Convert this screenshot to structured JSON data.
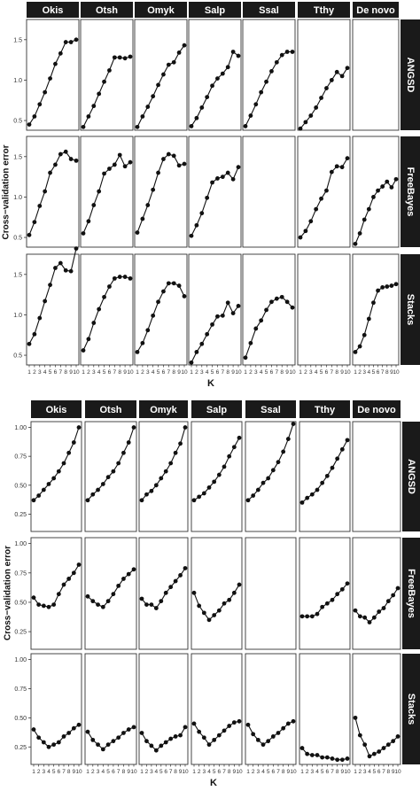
{
  "chart_data": [
    {
      "type": "line",
      "layout": "facet-grid",
      "title": "",
      "xlabel": "K",
      "ylabel": "Cross−validation error",
      "x": [
        1,
        2,
        3,
        4,
        5,
        6,
        7,
        8,
        9,
        10
      ],
      "x_tick_labels": [
        "1",
        "2",
        "3",
        "4",
        "5",
        "6",
        "7",
        "8",
        "9",
        "10"
      ],
      "ylim": [
        0.38,
        1.75
      ],
      "y_ticks": [
        0.5,
        1.0,
        1.5
      ],
      "y_tick_labels": [
        "0.5",
        "1.0",
        "1.5"
      ],
      "grid": false,
      "columns": [
        "Okis",
        "Otsh",
        "Omyk",
        "Salp",
        "Ssal",
        "Tthy",
        "De novo"
      ],
      "rows": [
        "ANGSD",
        "FreeBayes",
        "Stacks"
      ],
      "panels": [
        {
          "row": "ANGSD",
          "column": "Okis",
          "values": [
            0.45,
            0.55,
            0.7,
            0.85,
            1.02,
            1.2,
            1.33,
            1.47,
            1.47,
            1.5
          ]
        },
        {
          "row": "ANGSD",
          "column": "Otsh",
          "values": [
            0.42,
            0.55,
            0.68,
            0.83,
            0.98,
            1.12,
            1.28,
            1.28,
            1.27,
            1.29
          ]
        },
        {
          "row": "ANGSD",
          "column": "Omyk",
          "values": [
            0.42,
            0.55,
            0.67,
            0.8,
            0.94,
            1.07,
            1.19,
            1.22,
            1.34,
            1.43
          ]
        },
        {
          "row": "ANGSD",
          "column": "Salp",
          "values": [
            0.43,
            0.53,
            0.66,
            0.79,
            0.93,
            1.02,
            1.08,
            1.16,
            1.35,
            1.3
          ]
        },
        {
          "row": "ANGSD",
          "column": "Ssal",
          "values": [
            0.43,
            0.56,
            0.7,
            0.85,
            0.98,
            1.11,
            1.22,
            1.31,
            1.35,
            1.35
          ]
        },
        {
          "row": "ANGSD",
          "column": "Tthy",
          "values": [
            0.4,
            0.48,
            0.56,
            0.66,
            0.78,
            0.9,
            1.0,
            1.1,
            1.05,
            1.15
          ]
        },
        {
          "row": "ANGSD",
          "column": "De novo",
          "values": []
        },
        {
          "row": "FreeBayes",
          "column": "Okis",
          "values": [
            0.53,
            0.69,
            0.89,
            1.07,
            1.3,
            1.4,
            1.53,
            1.56,
            1.47,
            1.45
          ]
        },
        {
          "row": "FreeBayes",
          "column": "Otsh",
          "values": [
            0.55,
            0.7,
            0.9,
            1.07,
            1.29,
            1.35,
            1.4,
            1.52,
            1.38,
            1.43
          ]
        },
        {
          "row": "FreeBayes",
          "column": "Omyk",
          "values": [
            0.56,
            0.73,
            0.9,
            1.09,
            1.3,
            1.47,
            1.53,
            1.51,
            1.39,
            1.41
          ]
        },
        {
          "row": "FreeBayes",
          "column": "Salp",
          "values": [
            0.52,
            0.65,
            0.8,
            0.99,
            1.18,
            1.23,
            1.25,
            1.3,
            1.22,
            1.37
          ]
        },
        {
          "row": "FreeBayes",
          "column": "Ssal",
          "values": []
        },
        {
          "row": "FreeBayes",
          "column": "Tthy",
          "values": [
            0.5,
            0.58,
            0.7,
            0.85,
            0.98,
            1.08,
            1.31,
            1.38,
            1.37,
            1.48
          ]
        },
        {
          "row": "FreeBayes",
          "column": "De novo",
          "values": [
            0.42,
            0.55,
            0.72,
            0.85,
            1.0,
            1.08,
            1.13,
            1.19,
            1.12,
            1.22
          ]
        },
        {
          "row": "Stacks",
          "column": "Okis",
          "values": [
            0.64,
            0.76,
            0.96,
            1.17,
            1.37,
            1.58,
            1.64,
            1.55,
            1.54,
            1.82
          ]
        },
        {
          "row": "Stacks",
          "column": "Otsh",
          "values": [
            0.56,
            0.7,
            0.9,
            1.07,
            1.22,
            1.35,
            1.45,
            1.47,
            1.47,
            1.45
          ]
        },
        {
          "row": "Stacks",
          "column": "Omyk",
          "values": [
            0.54,
            0.65,
            0.81,
            0.99,
            1.16,
            1.29,
            1.39,
            1.39,
            1.36,
            1.23
          ]
        },
        {
          "row": "Stacks",
          "column": "Salp",
          "values": [
            0.41,
            0.54,
            0.64,
            0.76,
            0.88,
            0.98,
            0.99,
            1.15,
            1.02,
            1.11
          ]
        },
        {
          "row": "Stacks",
          "column": "Ssal",
          "values": [
            0.47,
            0.65,
            0.83,
            0.93,
            1.06,
            1.16,
            1.2,
            1.22,
            1.16,
            1.09
          ]
        },
        {
          "row": "Stacks",
          "column": "Tthy",
          "values": []
        },
        {
          "row": "Stacks",
          "column": "De novo",
          "values": [
            0.54,
            0.61,
            0.75,
            0.95,
            1.15,
            1.3,
            1.34,
            1.35,
            1.36,
            1.38
          ]
        }
      ]
    },
    {
      "type": "line",
      "layout": "facet-grid",
      "title": "",
      "xlabel": "K",
      "ylabel": "Cross−validation error",
      "x": [
        1,
        2,
        3,
        4,
        5,
        6,
        7,
        8,
        9,
        10
      ],
      "x_tick_labels": [
        "1",
        "2",
        "3",
        "4",
        "5",
        "6",
        "7",
        "8",
        "9",
        "10"
      ],
      "ylim": [
        0.1,
        1.05
      ],
      "y_ticks": [
        0.25,
        0.5,
        0.75,
        1.0
      ],
      "y_tick_labels": [
        "0.25",
        "0.50",
        "0.75",
        "1.00"
      ],
      "grid": false,
      "columns": [
        "Okis",
        "Otsh",
        "Omyk",
        "Salp",
        "Ssal",
        "Tthy",
        "De novo"
      ],
      "rows": [
        "ANGSD",
        "FreeBayes",
        "Stacks"
      ],
      "panels": [
        {
          "row": "ANGSD",
          "column": "Okis",
          "values": [
            0.37,
            0.41,
            0.46,
            0.51,
            0.56,
            0.62,
            0.69,
            0.78,
            0.87,
            1.0
          ]
        },
        {
          "row": "ANGSD",
          "column": "Otsh",
          "values": [
            0.37,
            0.42,
            0.46,
            0.51,
            0.57,
            0.62,
            0.69,
            0.78,
            0.87,
            1.0
          ]
        },
        {
          "row": "ANGSD",
          "column": "Omyk",
          "values": [
            0.37,
            0.42,
            0.45,
            0.5,
            0.56,
            0.62,
            0.69,
            0.78,
            0.86,
            1.0
          ]
        },
        {
          "row": "ANGSD",
          "column": "Salp",
          "values": [
            0.37,
            0.4,
            0.43,
            0.48,
            0.53,
            0.59,
            0.66,
            0.75,
            0.83,
            0.91
          ]
        },
        {
          "row": "ANGSD",
          "column": "Ssal",
          "values": [
            0.37,
            0.41,
            0.46,
            0.52,
            0.56,
            0.63,
            0.7,
            0.79,
            0.9,
            1.03
          ]
        },
        {
          "row": "ANGSD",
          "column": "Tthy",
          "values": [
            0.35,
            0.39,
            0.42,
            0.46,
            0.52,
            0.58,
            0.65,
            0.73,
            0.81,
            0.89
          ]
        },
        {
          "row": "ANGSD",
          "column": "De novo",
          "values": []
        },
        {
          "row": "FreeBayes",
          "column": "Okis",
          "values": [
            0.54,
            0.48,
            0.47,
            0.46,
            0.48,
            0.57,
            0.65,
            0.7,
            0.75,
            0.82
          ]
        },
        {
          "row": "FreeBayes",
          "column": "Otsh",
          "values": [
            0.55,
            0.51,
            0.48,
            0.46,
            0.51,
            0.57,
            0.64,
            0.7,
            0.74,
            0.78
          ]
        },
        {
          "row": "FreeBayes",
          "column": "Omyk",
          "values": [
            0.53,
            0.48,
            0.48,
            0.45,
            0.51,
            0.58,
            0.63,
            0.68,
            0.73,
            0.79
          ]
        },
        {
          "row": "FreeBayes",
          "column": "Salp",
          "values": [
            0.58,
            0.47,
            0.41,
            0.35,
            0.39,
            0.43,
            0.49,
            0.52,
            0.58,
            0.65
          ]
        },
        {
          "row": "FreeBayes",
          "column": "Ssal",
          "values": []
        },
        {
          "row": "FreeBayes",
          "column": "Tthy",
          "values": [
            0.38,
            0.38,
            0.38,
            0.4,
            0.46,
            0.49,
            0.52,
            0.57,
            0.61,
            0.66
          ]
        },
        {
          "row": "FreeBayes",
          "column": "De novo",
          "values": [
            0.43,
            0.38,
            0.37,
            0.33,
            0.37,
            0.42,
            0.45,
            0.51,
            0.56,
            0.62
          ]
        },
        {
          "row": "Stacks",
          "column": "Okis",
          "values": [
            0.4,
            0.33,
            0.29,
            0.25,
            0.27,
            0.29,
            0.34,
            0.37,
            0.41,
            0.44
          ]
        },
        {
          "row": "Stacks",
          "column": "Otsh",
          "values": [
            0.38,
            0.31,
            0.27,
            0.23,
            0.27,
            0.3,
            0.33,
            0.37,
            0.4,
            0.42
          ]
        },
        {
          "row": "Stacks",
          "column": "Omyk",
          "values": [
            0.37,
            0.3,
            0.26,
            0.22,
            0.26,
            0.29,
            0.32,
            0.34,
            0.35,
            0.42
          ]
        },
        {
          "row": "Stacks",
          "column": "Salp",
          "values": [
            0.45,
            0.38,
            0.33,
            0.27,
            0.31,
            0.35,
            0.39,
            0.43,
            0.46,
            0.47
          ]
        },
        {
          "row": "Stacks",
          "column": "Ssal",
          "values": [
            0.44,
            0.36,
            0.31,
            0.27,
            0.3,
            0.34,
            0.37,
            0.41,
            0.45,
            0.47
          ]
        },
        {
          "row": "Stacks",
          "column": "Tthy",
          "values": [
            0.24,
            0.19,
            0.18,
            0.18,
            0.16,
            0.16,
            0.15,
            0.14,
            0.14,
            0.15
          ]
        },
        {
          "row": "Stacks",
          "column": "De novo",
          "values": [
            0.5,
            0.35,
            0.27,
            0.17,
            0.19,
            0.21,
            0.24,
            0.27,
            0.3,
            0.34
          ]
        }
      ]
    }
  ]
}
